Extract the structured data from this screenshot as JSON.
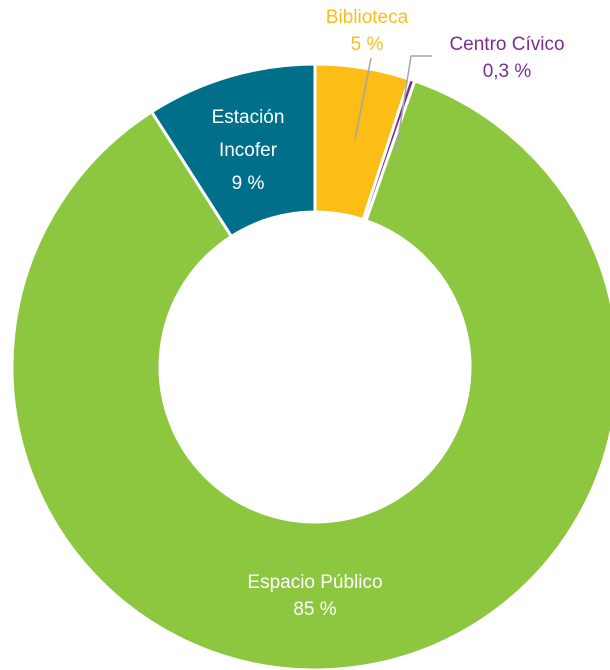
{
  "chart_data": {
    "type": "donut",
    "categories": [
      "Biblioteca",
      "Centro Cívico",
      "Espacio Público",
      "Estación Incofer"
    ],
    "values": [
      5,
      0.3,
      85,
      9
    ],
    "value_labels": [
      "5 %",
      "0,3 %",
      "85 %",
      "9 %"
    ],
    "colors": [
      "#fbbd16",
      "#7a2f8e",
      "#8dc63f",
      "#00708a"
    ]
  }
}
